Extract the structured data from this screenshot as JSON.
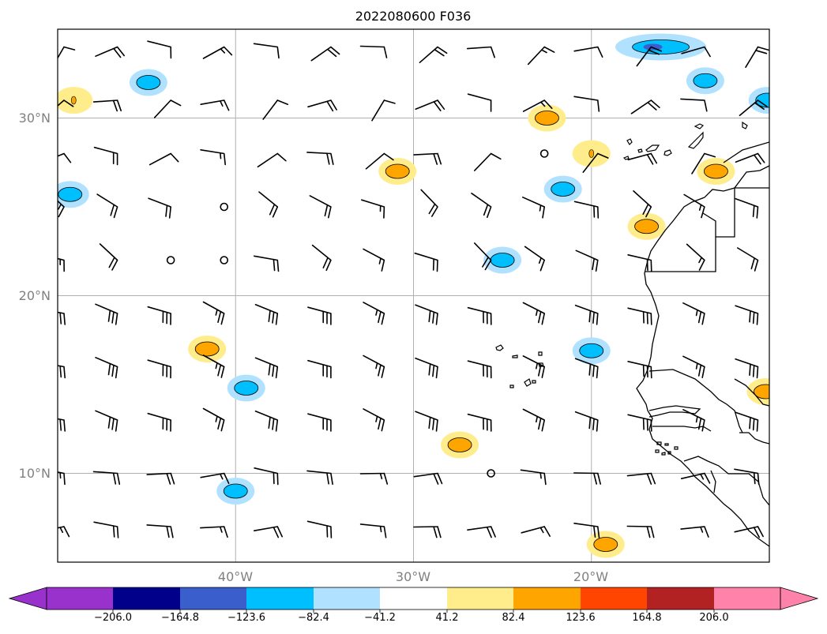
{
  "title": "2022080600 F036",
  "map": {
    "projection": "PlateCarree",
    "lon_range": [
      -50,
      -10
    ],
    "lat_range": [
      5,
      35
    ],
    "gridlines": true,
    "lat_ticks": [
      {
        "value": 30,
        "label": "30°N"
      },
      {
        "value": 20,
        "label": "20°N"
      },
      {
        "value": 10,
        "label": "10°N"
      }
    ],
    "lon_ticks": [
      {
        "value": -40,
        "label": "40°W"
      },
      {
        "value": -30,
        "label": "30°W"
      },
      {
        "value": -20,
        "label": "20°W"
      }
    ],
    "coastline": "West Africa (Morocco to Guinea), Canary and Cape Verde Islands",
    "field": "filled contours with black contour lines and wind barbs"
  },
  "colorbar": {
    "orientation": "horizontal",
    "extend": "both",
    "colors": [
      "#9932cc",
      "#00008b",
      "#3a5fcd",
      "#00bfff",
      "#b0e2ff",
      "#ffffff",
      "#ffec8b",
      "#ffa500",
      "#ff4500",
      "#b22222",
      "#ff82ab"
    ],
    "tick_labels": [
      "−206.0",
      "−164.8",
      "−123.6",
      "−82.4",
      "−41.2",
      "41.2",
      "82.4",
      "123.6",
      "164.8",
      "206.0"
    ]
  },
  "features": [
    {
      "kind": "positive",
      "level": "orange",
      "lon": -27.4,
      "lat": 11.6
    },
    {
      "kind": "positive",
      "level": "orange",
      "lon": -41.6,
      "lat": 17.0
    },
    {
      "kind": "positive",
      "level": "orange",
      "lon": -30.9,
      "lat": 27.0
    },
    {
      "kind": "positive",
      "level": "orange",
      "lon": -19.2,
      "lat": 6.0
    },
    {
      "kind": "positive",
      "level": "orange",
      "lon": -10.2,
      "lat": 14.6
    },
    {
      "kind": "positive",
      "level": "orange",
      "lon": -16.9,
      "lat": 23.9
    },
    {
      "kind": "positive",
      "level": "orange",
      "lon": -13.0,
      "lat": 27.0
    },
    {
      "kind": "positive",
      "level": "orange",
      "lon": -22.5,
      "lat": 30.0
    },
    {
      "kind": "positive",
      "level": "yellow",
      "lon": -20.0,
      "lat": 28.0
    },
    {
      "kind": "positive",
      "level": "yellow",
      "lon": -49.1,
      "lat": 31.0
    },
    {
      "kind": "negative",
      "level": "blue",
      "lon": -49.3,
      "lat": 25.7
    },
    {
      "kind": "negative",
      "level": "blue",
      "lon": -40.0,
      "lat": 9.0
    },
    {
      "kind": "negative",
      "level": "blue",
      "lon": -39.4,
      "lat": 14.8
    },
    {
      "kind": "negative",
      "level": "blue",
      "lon": -21.6,
      "lat": 26.0
    },
    {
      "kind": "negative",
      "level": "blue",
      "lon": -20.0,
      "lat": 16.9
    },
    {
      "kind": "negative",
      "level": "blue",
      "lon": -25.0,
      "lat": 22.0
    },
    {
      "kind": "negative",
      "level": "blue",
      "lon": -44.9,
      "lat": 32.0
    },
    {
      "kind": "negative",
      "level": "blue",
      "lon": -13.6,
      "lat": 32.1
    },
    {
      "kind": "negative",
      "level": "dark-blue",
      "lon": -16.1,
      "lat": 34.0
    },
    {
      "kind": "negative",
      "level": "blue",
      "lon": -10.1,
      "lat": 31.0
    }
  ]
}
